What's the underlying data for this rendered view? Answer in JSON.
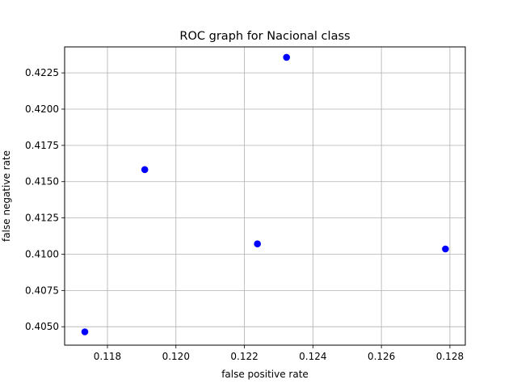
{
  "chart_data": {
    "type": "scatter",
    "title": "ROC graph for Nacional class",
    "xlabel": "false positive rate",
    "ylabel": "false negative rate",
    "xlim": [
      0.11675,
      0.12845
    ],
    "ylim": [
      0.40373,
      0.42429
    ],
    "xticks": [
      "0.118",
      "0.120",
      "0.122",
      "0.124",
      "0.126",
      "0.128"
    ],
    "yticks": [
      "0.4050",
      "0.4075",
      "0.4100",
      "0.4125",
      "0.4150",
      "0.4175",
      "0.4200",
      "0.4225"
    ],
    "grid": true,
    "marker_color": "#0000ff",
    "points": [
      {
        "x": 0.11734,
        "y": 0.40465
      },
      {
        "x": 0.11909,
        "y": 0.41583
      },
      {
        "x": 0.12238,
        "y": 0.41071
      },
      {
        "x": 0.12323,
        "y": 0.42357
      },
      {
        "x": 0.12787,
        "y": 0.41036
      }
    ]
  }
}
